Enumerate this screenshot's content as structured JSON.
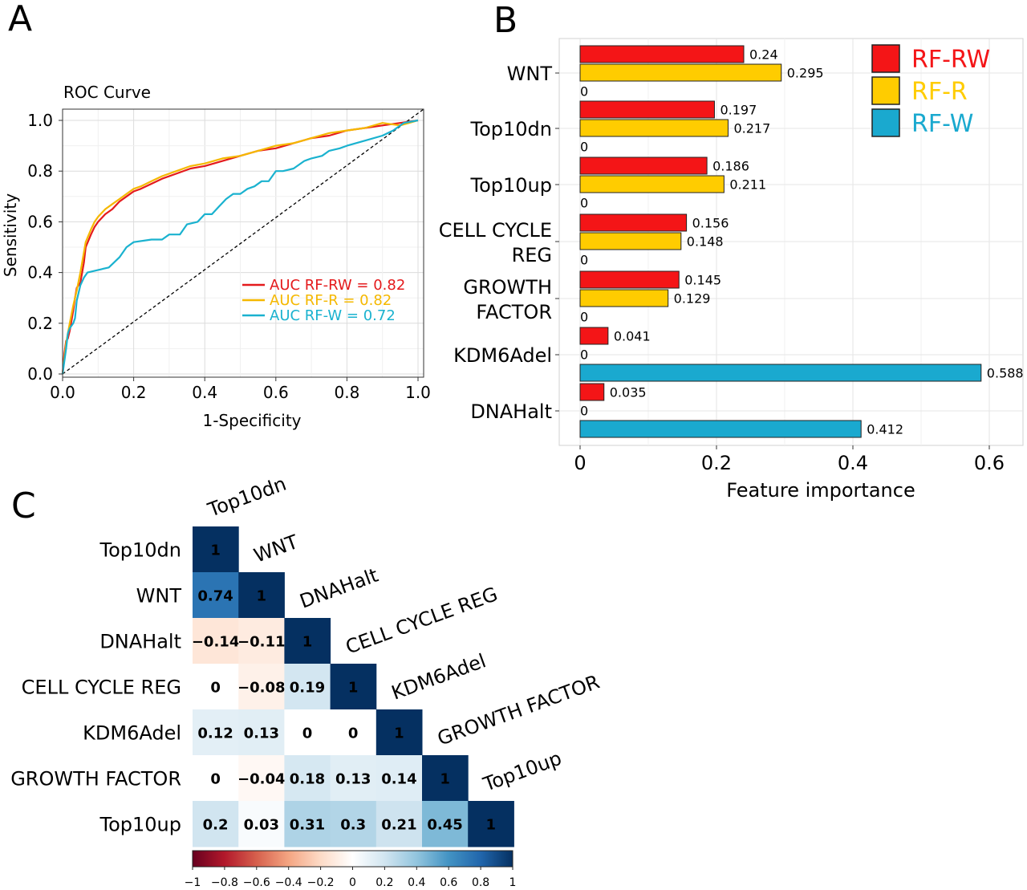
{
  "panels": {
    "a": "A",
    "b": "B",
    "c": "C"
  },
  "chart_data": [
    {
      "type": "line",
      "title": "ROC Curve",
      "xlabel": "1-Specificity",
      "ylabel": "Sensitivity",
      "xlim": [
        0,
        1
      ],
      "ylim": [
        0,
        1
      ],
      "grid": true,
      "xticks": [
        "0.0",
        "0.2",
        "0.4",
        "0.6",
        "0.8",
        "1.0"
      ],
      "yticks": [
        "0.0",
        "0.2",
        "0.4",
        "0.6",
        "0.8",
        "1.0"
      ],
      "legend_position": "bottom-right",
      "series": [
        {
          "name": "AUC RF-RW = 0.82",
          "color": "#e41a1c",
          "points": [
            [
              0,
              0
            ],
            [
              0.005,
              0.08
            ],
            [
              0.01,
              0.13
            ],
            [
              0.015,
              0.14
            ],
            [
              0.02,
              0.17
            ],
            [
              0.03,
              0.25
            ],
            [
              0.035,
              0.3
            ],
            [
              0.04,
              0.34
            ],
            [
              0.05,
              0.36
            ],
            [
              0.06,
              0.44
            ],
            [
              0.065,
              0.5
            ],
            [
              0.08,
              0.55
            ],
            [
              0.09,
              0.58
            ],
            [
              0.1,
              0.6
            ],
            [
              0.12,
              0.63
            ],
            [
              0.14,
              0.65
            ],
            [
              0.16,
              0.68
            ],
            [
              0.18,
              0.7
            ],
            [
              0.2,
              0.72
            ],
            [
              0.22,
              0.73
            ],
            [
              0.25,
              0.75
            ],
            [
              0.28,
              0.77
            ],
            [
              0.32,
              0.79
            ],
            [
              0.36,
              0.81
            ],
            [
              0.4,
              0.82
            ],
            [
              0.45,
              0.84
            ],
            [
              0.5,
              0.86
            ],
            [
              0.55,
              0.88
            ],
            [
              0.6,
              0.89
            ],
            [
              0.65,
              0.91
            ],
            [
              0.7,
              0.93
            ],
            [
              0.75,
              0.94
            ],
            [
              0.8,
              0.96
            ],
            [
              0.85,
              0.97
            ],
            [
              0.9,
              0.98
            ],
            [
              0.95,
              0.99
            ],
            [
              1,
              1
            ]
          ]
        },
        {
          "name": "AUC RF-R = 0.82",
          "color": "#f5b800",
          "points": [
            [
              0,
              0
            ],
            [
              0.005,
              0.06
            ],
            [
              0.01,
              0.12
            ],
            [
              0.015,
              0.16
            ],
            [
              0.02,
              0.2
            ],
            [
              0.03,
              0.27
            ],
            [
              0.04,
              0.33
            ],
            [
              0.05,
              0.4
            ],
            [
              0.06,
              0.48
            ],
            [
              0.065,
              0.52
            ],
            [
              0.08,
              0.57
            ],
            [
              0.09,
              0.6
            ],
            [
              0.1,
              0.62
            ],
            [
              0.12,
              0.65
            ],
            [
              0.14,
              0.67
            ],
            [
              0.16,
              0.69
            ],
            [
              0.18,
              0.71
            ],
            [
              0.2,
              0.73
            ],
            [
              0.22,
              0.74
            ],
            [
              0.25,
              0.76
            ],
            [
              0.28,
              0.78
            ],
            [
              0.32,
              0.8
            ],
            [
              0.36,
              0.82
            ],
            [
              0.4,
              0.83
            ],
            [
              0.45,
              0.85
            ],
            [
              0.5,
              0.86
            ],
            [
              0.55,
              0.88
            ],
            [
              0.6,
              0.9
            ],
            [
              0.65,
              0.91
            ],
            [
              0.7,
              0.93
            ],
            [
              0.75,
              0.95
            ],
            [
              0.8,
              0.96
            ],
            [
              0.85,
              0.97
            ],
            [
              0.9,
              0.99
            ],
            [
              0.95,
              0.98
            ],
            [
              1,
              1
            ]
          ]
        },
        {
          "name": "AUC RF-W = 0.72",
          "color": "#1ab2cf",
          "points": [
            [
              0,
              0
            ],
            [
              0.005,
              0.05
            ],
            [
              0.01,
              0.1
            ],
            [
              0.015,
              0.16
            ],
            [
              0.02,
              0.18
            ],
            [
              0.03,
              0.2
            ],
            [
              0.035,
              0.22
            ],
            [
              0.04,
              0.29
            ],
            [
              0.05,
              0.35
            ],
            [
              0.06,
              0.38
            ],
            [
              0.07,
              0.4
            ],
            [
              0.1,
              0.41
            ],
            [
              0.13,
              0.42
            ],
            [
              0.16,
              0.46
            ],
            [
              0.18,
              0.5
            ],
            [
              0.2,
              0.52
            ],
            [
              0.25,
              0.53
            ],
            [
              0.28,
              0.53
            ],
            [
              0.3,
              0.55
            ],
            [
              0.33,
              0.55
            ],
            [
              0.35,
              0.59
            ],
            [
              0.38,
              0.6
            ],
            [
              0.4,
              0.63
            ],
            [
              0.42,
              0.63
            ],
            [
              0.44,
              0.66
            ],
            [
              0.46,
              0.69
            ],
            [
              0.48,
              0.71
            ],
            [
              0.5,
              0.71
            ],
            [
              0.52,
              0.73
            ],
            [
              0.54,
              0.74
            ],
            [
              0.56,
              0.76
            ],
            [
              0.58,
              0.76
            ],
            [
              0.6,
              0.8
            ],
            [
              0.62,
              0.8
            ],
            [
              0.65,
              0.81
            ],
            [
              0.68,
              0.84
            ],
            [
              0.7,
              0.85
            ],
            [
              0.73,
              0.86
            ],
            [
              0.75,
              0.88
            ],
            [
              0.78,
              0.89
            ],
            [
              0.8,
              0.9
            ],
            [
              0.85,
              0.92
            ],
            [
              0.9,
              0.94
            ],
            [
              0.93,
              0.96
            ],
            [
              0.96,
              0.99
            ],
            [
              1,
              1
            ]
          ]
        }
      ]
    },
    {
      "type": "bar",
      "orientation": "horizontal",
      "xlabel": "Feature importance",
      "xlim": [
        0,
        0.65
      ],
      "xticks": [
        "0",
        "0.2",
        "0.4",
        "0.6"
      ],
      "categories": [
        [
          "WNT"
        ],
        [
          "Top10dn"
        ],
        [
          "Top10up"
        ],
        [
          "CELL CYCLE",
          "REG"
        ],
        [
          "GROWTH",
          "FACTOR"
        ],
        [
          "KDM6Adel"
        ],
        [
          "DNAHalt"
        ]
      ],
      "legend_position": "top-right",
      "series": [
        {
          "name": "RF-RW",
          "color": "#f41517",
          "values": [
            0.24,
            0.197,
            0.186,
            0.156,
            0.145,
            0.041,
            0.035
          ],
          "labels": [
            "0.24",
            "0.197",
            "0.186",
            "0.156",
            "0.145",
            "0.041",
            "0.035"
          ]
        },
        {
          "name": "RF-R",
          "color": "#ffcc00",
          "values": [
            0.295,
            0.217,
            0.211,
            0.148,
            0.129,
            0,
            0
          ],
          "labels": [
            "0.295",
            "0.217",
            "0.211",
            "0.148",
            "0.129",
            "0",
            "0"
          ]
        },
        {
          "name": "RF-W",
          "color": "#1aa9cf",
          "values": [
            0,
            0,
            0,
            0,
            0,
            0.588,
            0.412
          ],
          "labels": [
            "0",
            "0",
            "0",
            "0",
            "0",
            "0.588",
            "0.412"
          ]
        }
      ]
    },
    {
      "type": "heatmap",
      "variables": [
        "Top10dn",
        "WNT",
        "DNAHalt",
        "CELL CYCLE REG",
        "KDM6Adel",
        "GROWTH FACTOR",
        "Top10up"
      ],
      "lower_triangle": [
        [
          "1"
        ],
        [
          "0.74",
          "1"
        ],
        [
          "−0.14",
          "−0.11",
          "1"
        ],
        [
          "0",
          "−0.08",
          "0.19",
          "1"
        ],
        [
          "0.12",
          "0.13",
          "0",
          "0",
          "1"
        ],
        [
          "0",
          "−0.04",
          "0.18",
          "0.13",
          "0.14",
          "1"
        ],
        [
          "0.2",
          "0.03",
          "0.31",
          "0.3",
          "0.21",
          "0.45",
          "1"
        ]
      ],
      "colorbar_range": [
        -1,
        1
      ],
      "colorbar_ticks": [
        "−1",
        "−0.8",
        "−0.6",
        "−0.4",
        "−0.2",
        "0",
        "0.2",
        "0.4",
        "0.6",
        "0.8",
        "1"
      ]
    }
  ]
}
